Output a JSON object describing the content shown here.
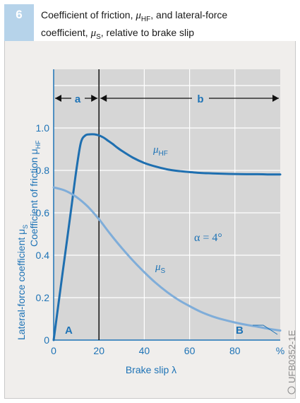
{
  "figure": {
    "number": "6",
    "caption_line1_a": "Coefficient of friction, ",
    "caption_mu_hf": "μ",
    "caption_mu_hf_sub": "HF",
    "caption_line1_b": ", and lateral-force",
    "caption_line2_a": "coefficient, ",
    "caption_mu_s": "μ",
    "caption_mu_s_sub": "S",
    "caption_line2_b": ", relative to brake slip",
    "side_code": "UFB0352-1E"
  },
  "chart_data": {
    "type": "line",
    "xlabel": "Brake slip λ",
    "ylabel_hf": "Coefficient of friction μ",
    "ylabel_hf_sub": "HF",
    "ylabel_s": "Lateral-force coefficient μ",
    "ylabel_s_sub": "S",
    "xlim": [
      0,
      100
    ],
    "ylim": [
      0,
      1.2
    ],
    "x_ticks": [
      "0",
      "20",
      "40",
      "60",
      "80",
      "%"
    ],
    "x_tick_values": [
      0,
      20,
      40,
      60,
      80,
      100
    ],
    "y_ticks": [
      "0",
      "0.2",
      "0.4",
      "0.6",
      "0.8",
      "1.0"
    ],
    "y_tick_values": [
      0,
      0.2,
      0.4,
      0.6,
      0.8,
      1.0
    ],
    "grid": true,
    "series": [
      {
        "name": "μHF",
        "label": "μ",
        "label_sub": "HF",
        "color": "#1e6fb0",
        "x": [
          0,
          2,
          4,
          6,
          8,
          10,
          12,
          14,
          16,
          18,
          20,
          22,
          24,
          26,
          28,
          30,
          35,
          40,
          45,
          50,
          55,
          60,
          65,
          70,
          75,
          80,
          85,
          90,
          95,
          100
        ],
        "y": [
          0,
          0.16,
          0.32,
          0.48,
          0.64,
          0.8,
          0.93,
          0.965,
          0.97,
          0.97,
          0.965,
          0.955,
          0.94,
          0.925,
          0.908,
          0.893,
          0.86,
          0.835,
          0.818,
          0.805,
          0.797,
          0.792,
          0.788,
          0.786,
          0.784,
          0.783,
          0.782,
          0.782,
          0.781,
          0.781
        ]
      },
      {
        "name": "μS",
        "label": "μ",
        "label_sub": "S",
        "color": "#7fadd9",
        "x": [
          0,
          5,
          10,
          15,
          20,
          25,
          30,
          35,
          40,
          45,
          50,
          55,
          60,
          65,
          70,
          75,
          80,
          85,
          90,
          95,
          100
        ],
        "y": [
          0.72,
          0.705,
          0.675,
          0.63,
          0.57,
          0.5,
          0.435,
          0.375,
          0.32,
          0.27,
          0.227,
          0.19,
          0.16,
          0.133,
          0.112,
          0.096,
          0.083,
          0.072,
          0.063,
          0.053,
          0.045
        ]
      }
    ],
    "annotations": {
      "alpha_label": "α = 4°",
      "region_a": "a",
      "region_b": "b",
      "point_a": "A",
      "point_b": "B",
      "divider_x": 20
    }
  }
}
